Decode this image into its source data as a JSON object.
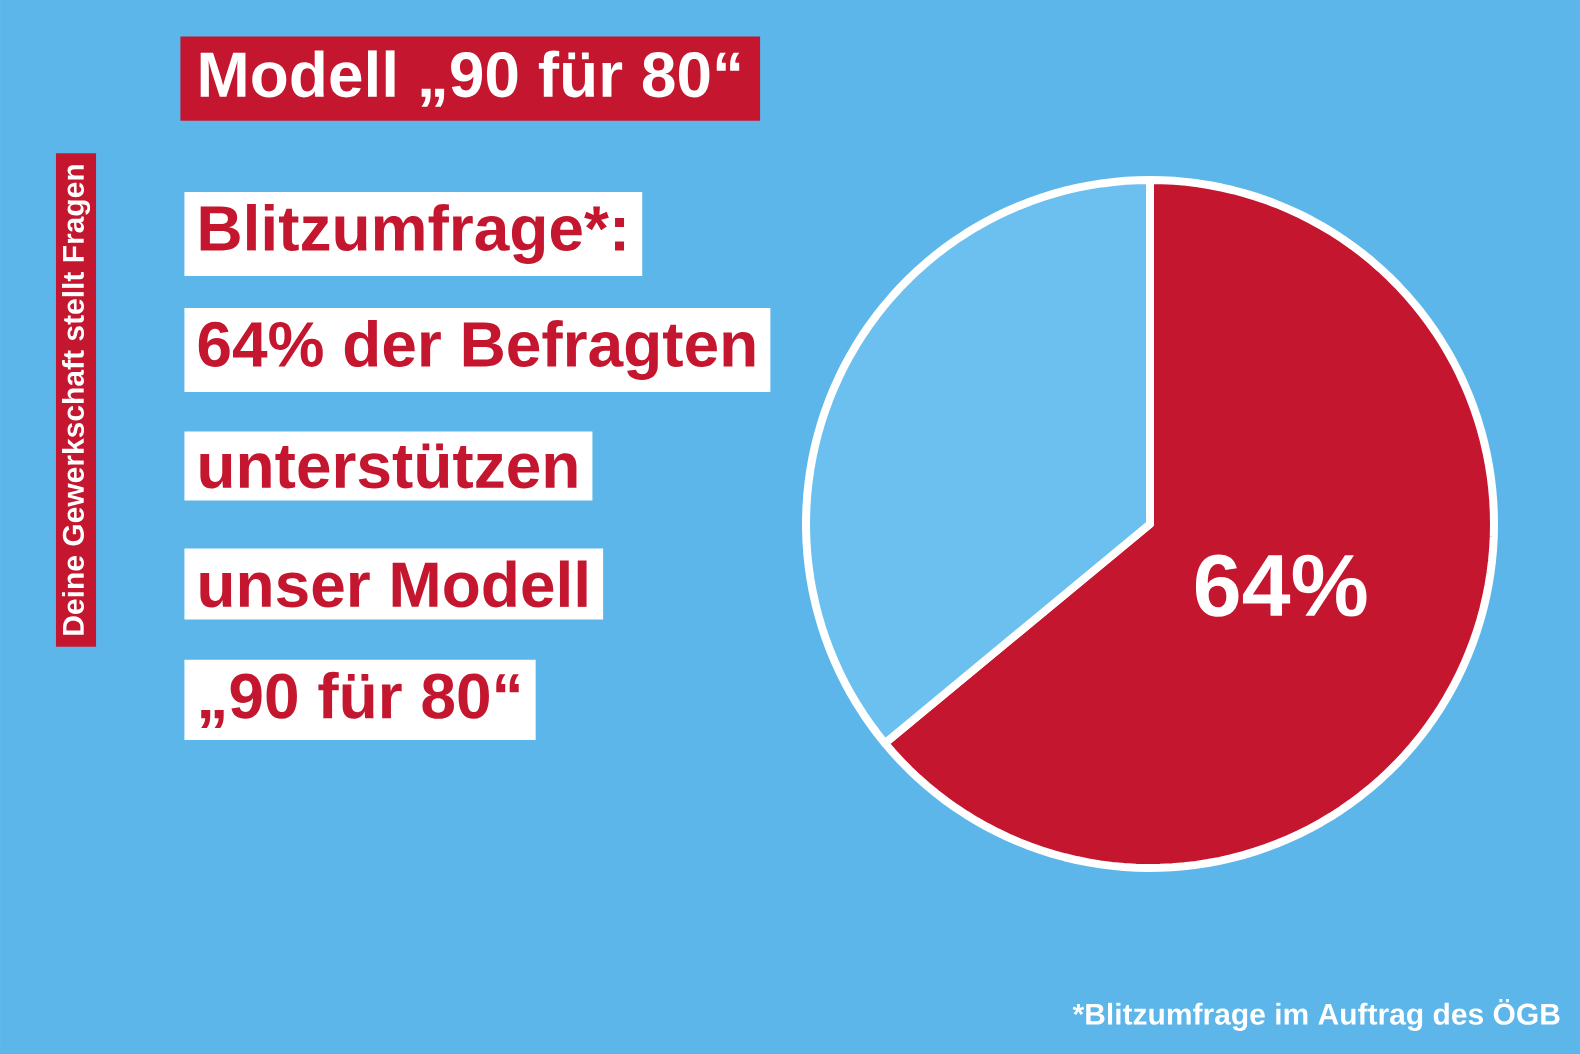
{
  "chart_data": {
    "type": "pie",
    "title": "Modell „90 für 80“",
    "categories": [
      null,
      null
    ],
    "values": [
      64,
      36
    ],
    "colors": [
      "#c4172f",
      "#6cc0f0"
    ],
    "value_labels": [
      "64%",
      null
    ],
    "annotations": [
      "Blitzumfrage*:",
      "64% der Befragten",
      "unterstützen",
      "unser Modell",
      "„90 für 80“",
      "Deine Gewerkschaft stellt Fragen",
      "*Blitzumfrage im Auftrag des ÖGB"
    ]
  }
}
